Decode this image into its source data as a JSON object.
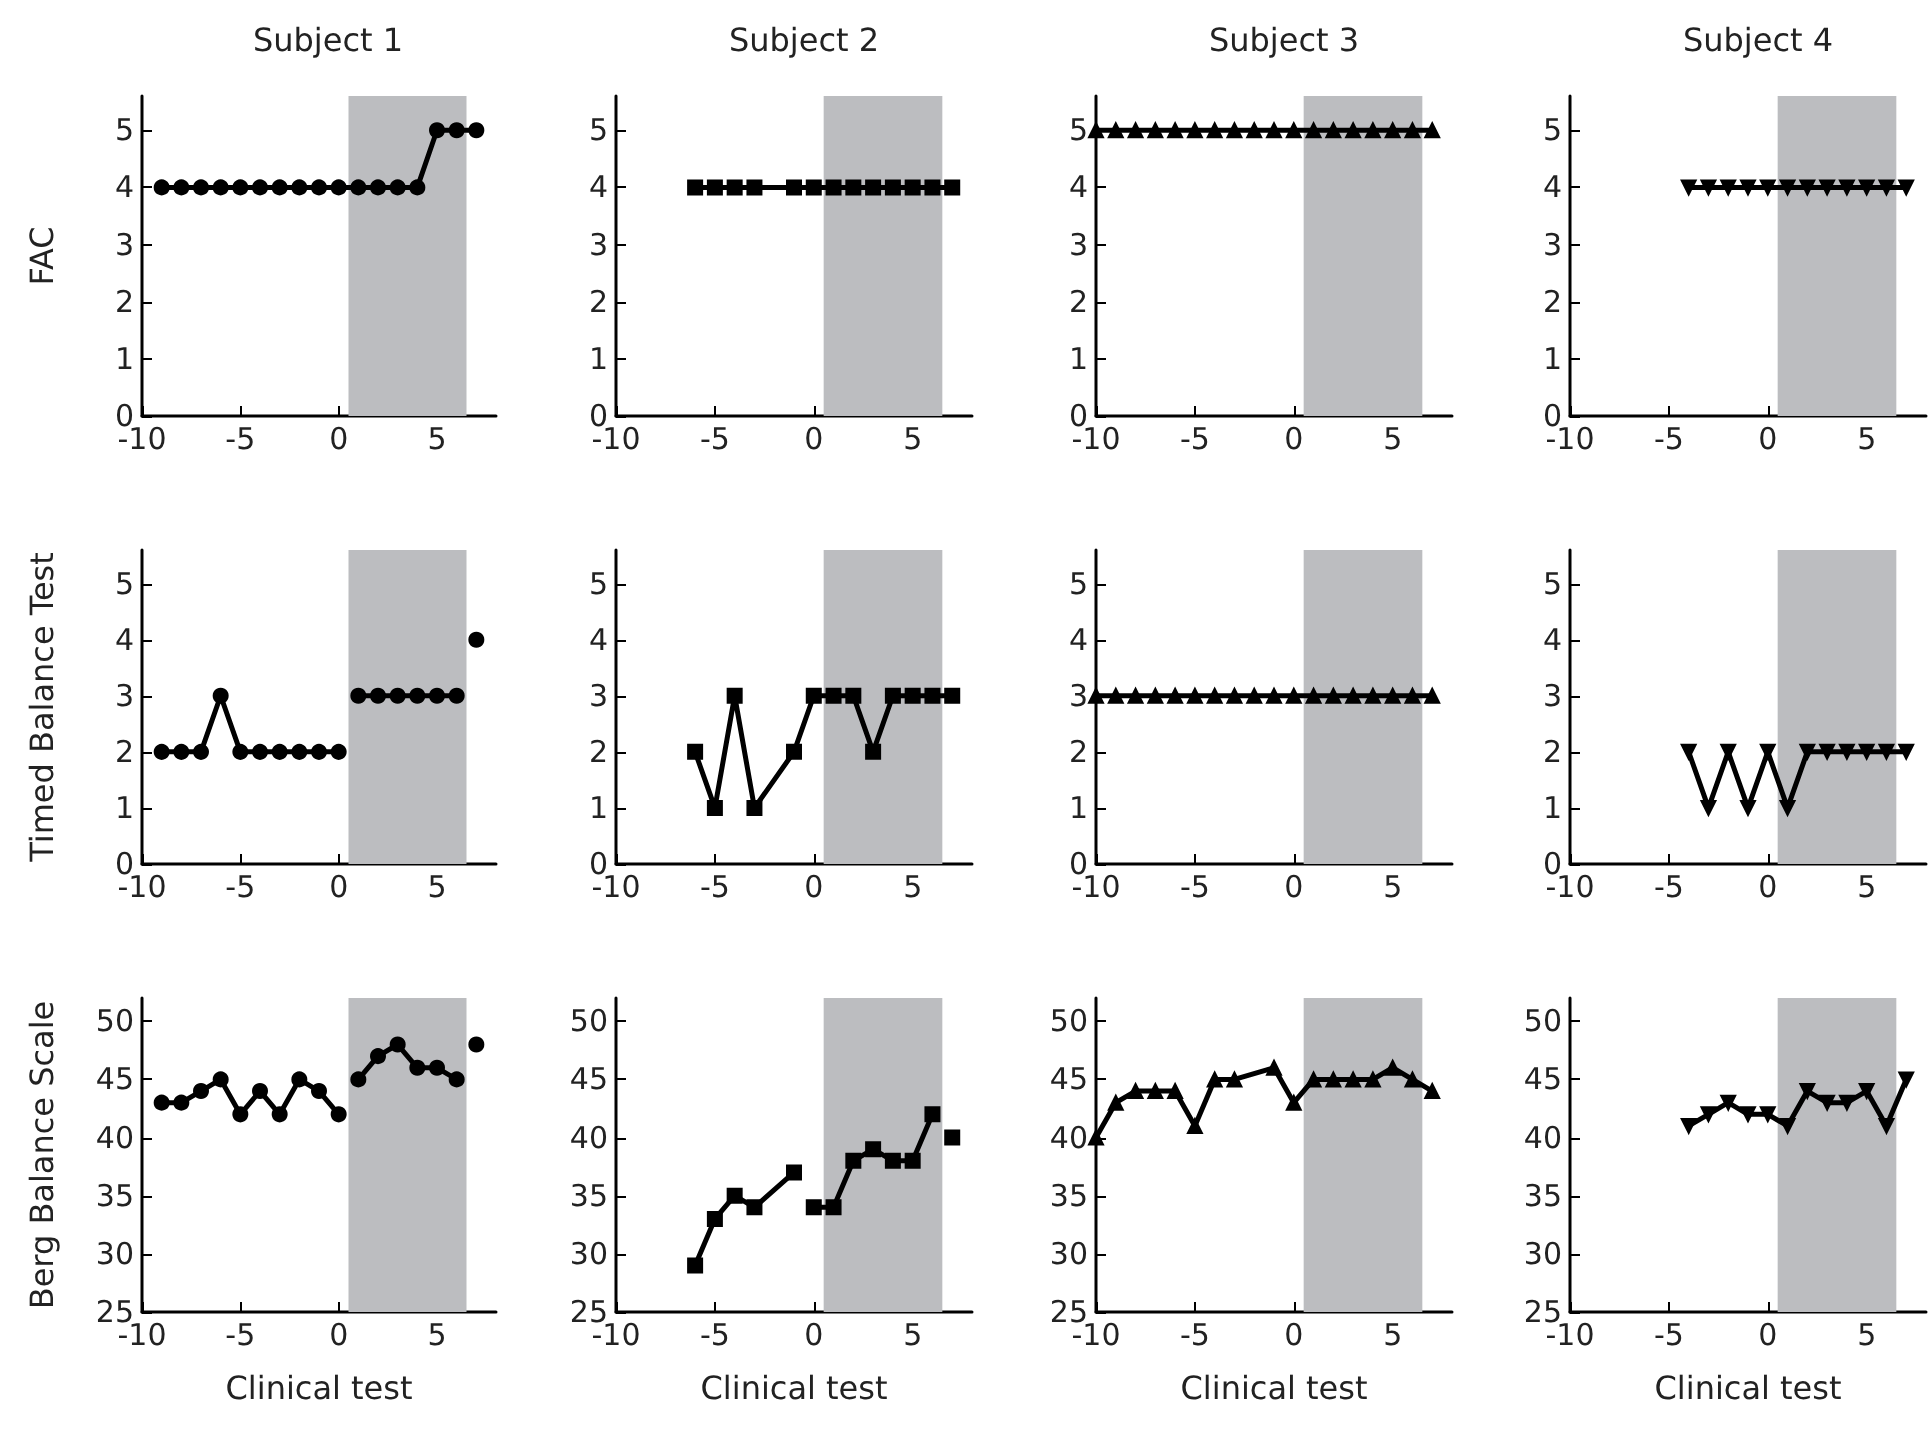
{
  "chart_data": [
    {
      "type": "line",
      "title": "Subject 1",
      "ylabel": "FAC",
      "xlim": [
        -10,
        8
      ],
      "xticks": [
        -10,
        -5,
        0,
        5
      ],
      "ylim": [
        0,
        5.6
      ],
      "yticks": [
        0,
        1,
        2,
        3,
        4,
        5
      ],
      "marker": "circle",
      "bands": [
        {
          "axis": "x",
          "from": 0.5,
          "to": 6.5,
          "color": "#bcbdc0"
        }
      ],
      "series": [
        {
          "color": "#000000",
          "x": [
            -9,
            -8,
            -7,
            -6,
            -5,
            -4,
            -3,
            -2,
            -1,
            0,
            1,
            2,
            3,
            4,
            5,
            6,
            7
          ],
          "values": [
            4,
            4,
            4,
            4,
            4,
            4,
            4,
            4,
            4,
            4,
            4,
            4,
            4,
            4,
            5,
            5,
            5
          ]
        }
      ]
    },
    {
      "type": "line",
      "title": "Subject 2",
      "xlim": [
        -10,
        8
      ],
      "xticks": [
        -10,
        -5,
        0,
        5
      ],
      "ylim": [
        0,
        5.6
      ],
      "yticks": [
        0,
        1,
        2,
        3,
        4,
        5
      ],
      "marker": "square",
      "bands": [
        {
          "axis": "x",
          "from": 0.5,
          "to": 6.5,
          "color": "#bcbdc0"
        }
      ],
      "series": [
        {
          "color": "#000000",
          "x": [
            -6,
            -5,
            -4,
            -3,
            -1,
            0,
            1,
            2,
            3,
            4,
            5,
            6,
            7
          ],
          "values": [
            4,
            4,
            4,
            4,
            4,
            4,
            4,
            4,
            4,
            4,
            4,
            4,
            4
          ]
        }
      ]
    },
    {
      "type": "line",
      "title": "Subject 3",
      "xlim": [
        -10,
        8
      ],
      "xticks": [
        -10,
        -5,
        0,
        5
      ],
      "ylim": [
        0,
        5.6
      ],
      "yticks": [
        0,
        1,
        2,
        3,
        4,
        5
      ],
      "marker": "triangle",
      "bands": [
        {
          "axis": "x",
          "from": 0.5,
          "to": 6.5,
          "color": "#bcbdc0"
        }
      ],
      "series": [
        {
          "color": "#000000",
          "x": [
            -10,
            -9,
            -8,
            -7,
            -6,
            -5,
            -4,
            -3,
            -2,
            -1,
            0,
            1,
            2,
            3,
            4,
            5,
            6,
            7
          ],
          "values": [
            5,
            5,
            5,
            5,
            5,
            5,
            5,
            5,
            5,
            5,
            5,
            5,
            5,
            5,
            5,
            5,
            5,
            5
          ]
        }
      ]
    },
    {
      "type": "line",
      "title": "Subject 4",
      "xlim": [
        -10,
        8
      ],
      "xticks": [
        -10,
        -5,
        0,
        5
      ],
      "ylim": [
        0,
        5.6
      ],
      "yticks": [
        0,
        1,
        2,
        3,
        4,
        5
      ],
      "marker": "triangle-down",
      "bands": [
        {
          "axis": "x",
          "from": 0.5,
          "to": 6.5,
          "color": "#bcbdc0"
        }
      ],
      "series": [
        {
          "color": "#000000",
          "x": [
            -4,
            -3,
            -2,
            -1,
            0,
            1,
            2,
            3,
            4,
            5,
            6,
            7
          ],
          "values": [
            4,
            4,
            4,
            4,
            4,
            4,
            4,
            4,
            4,
            4,
            4,
            4
          ]
        }
      ]
    },
    {
      "type": "line",
      "ylabel": "Timed Balance Test",
      "xlim": [
        -10,
        8
      ],
      "xticks": [
        -10,
        -5,
        0,
        5
      ],
      "ylim": [
        0,
        5.6
      ],
      "yticks": [
        0,
        1,
        2,
        3,
        4,
        5
      ],
      "marker": "circle",
      "bands": [
        {
          "axis": "x",
          "from": 0.5,
          "to": 6.5,
          "color": "#bcbdc0"
        }
      ],
      "series": [
        {
          "color": "#000000",
          "x": [
            -9,
            -8,
            -7,
            -6,
            -5,
            -4,
            -3,
            -2,
            -1,
            0
          ],
          "values": [
            2,
            2,
            2,
            3,
            2,
            2,
            2,
            2,
            2,
            2
          ]
        },
        {
          "color": "#000000",
          "x": [
            1,
            2,
            3,
            4,
            5,
            6
          ],
          "values": [
            3,
            3,
            3,
            3,
            3,
            3
          ]
        },
        {
          "color": "#000000",
          "x": [
            7
          ],
          "values": [
            4
          ]
        }
      ]
    },
    {
      "type": "line",
      "xlim": [
        -10,
        8
      ],
      "xticks": [
        -10,
        -5,
        0,
        5
      ],
      "ylim": [
        0,
        5.6
      ],
      "yticks": [
        0,
        1,
        2,
        3,
        4,
        5
      ],
      "marker": "square",
      "bands": [
        {
          "axis": "x",
          "from": 0.5,
          "to": 6.5,
          "color": "#bcbdc0"
        }
      ],
      "series": [
        {
          "color": "#000000",
          "x": [
            -6,
            -5,
            -4,
            -3,
            -1,
            0,
            1,
            2,
            3,
            4,
            5,
            6,
            7
          ],
          "values": [
            2,
            1,
            3,
            1,
            2,
            3,
            3,
            3,
            2,
            3,
            3,
            3,
            3
          ]
        }
      ]
    },
    {
      "type": "line",
      "xlim": [
        -10,
        8
      ],
      "xticks": [
        -10,
        -5,
        0,
        5
      ],
      "ylim": [
        0,
        5.6
      ],
      "yticks": [
        0,
        1,
        2,
        3,
        4,
        5
      ],
      "marker": "triangle",
      "bands": [
        {
          "axis": "x",
          "from": 0.5,
          "to": 6.5,
          "color": "#bcbdc0"
        }
      ],
      "series": [
        {
          "color": "#000000",
          "x": [
            -10,
            -9,
            -8,
            -7,
            -6,
            -5,
            -4,
            -3,
            -2,
            -1,
            0,
            1,
            2,
            3,
            4,
            5,
            6,
            7
          ],
          "values": [
            3,
            3,
            3,
            3,
            3,
            3,
            3,
            3,
            3,
            3,
            3,
            3,
            3,
            3,
            3,
            3,
            3,
            3
          ]
        }
      ]
    },
    {
      "type": "line",
      "xlim": [
        -10,
        8
      ],
      "xticks": [
        -10,
        -5,
        0,
        5
      ],
      "ylim": [
        0,
        5.6
      ],
      "yticks": [
        0,
        1,
        2,
        3,
        4,
        5
      ],
      "marker": "triangle-down",
      "bands": [
        {
          "axis": "x",
          "from": 0.5,
          "to": 6.5,
          "color": "#bcbdc0"
        }
      ],
      "series": [
        {
          "color": "#000000",
          "x": [
            -4,
            -3,
            -2,
            -1,
            0,
            1,
            2,
            3,
            4,
            5,
            6,
            7
          ],
          "values": [
            2,
            1,
            2,
            1,
            2,
            1,
            2,
            2,
            2,
            2,
            2,
            2
          ]
        }
      ]
    },
    {
      "type": "line",
      "ylabel": "Berg Balance Scale",
      "xlabel": "Clinical test",
      "xlim": [
        -10,
        8
      ],
      "xticks": [
        -10,
        -5,
        0,
        5
      ],
      "ylim": [
        25,
        52
      ],
      "yticks": [
        25,
        30,
        35,
        40,
        45,
        50
      ],
      "marker": "circle",
      "bands": [
        {
          "axis": "x",
          "from": 0.5,
          "to": 6.5,
          "color": "#bcbdc0"
        }
      ],
      "series": [
        {
          "color": "#000000",
          "x": [
            -9,
            -8,
            -7,
            -6,
            -5,
            -4,
            -3,
            -2,
            -1,
            0
          ],
          "values": [
            43,
            43,
            44,
            45,
            42,
            44,
            42,
            45,
            44,
            42
          ]
        },
        {
          "color": "#000000",
          "x": [
            1,
            2,
            3,
            4,
            5,
            6
          ],
          "values": [
            45,
            47,
            48,
            46,
            46,
            45
          ]
        },
        {
          "color": "#000000",
          "x": [
            7
          ],
          "values": [
            48
          ]
        }
      ]
    },
    {
      "type": "line",
      "xlabel": "Clinical test",
      "xlim": [
        -10,
        8
      ],
      "xticks": [
        -10,
        -5,
        0,
        5
      ],
      "ylim": [
        25,
        52
      ],
      "yticks": [
        25,
        30,
        35,
        40,
        45,
        50
      ],
      "marker": "square",
      "bands": [
        {
          "axis": "x",
          "from": 0.5,
          "to": 6.5,
          "color": "#bcbdc0"
        }
      ],
      "series": [
        {
          "color": "#000000",
          "x": [
            -6,
            -5,
            -4,
            -3,
            -1
          ],
          "values": [
            29,
            33,
            35,
            34,
            37
          ]
        },
        {
          "color": "#000000",
          "x": [
            0,
            1,
            2,
            3,
            4,
            5,
            6
          ],
          "values": [
            34,
            34,
            38,
            39,
            38,
            38,
            42
          ]
        },
        {
          "color": "#000000",
          "x": [
            7
          ],
          "values": [
            40
          ]
        }
      ]
    },
    {
      "type": "line",
      "xlabel": "Clinical test",
      "xlim": [
        -10,
        8
      ],
      "xticks": [
        -10,
        -5,
        0,
        5
      ],
      "ylim": [
        25,
        52
      ],
      "yticks": [
        25,
        30,
        35,
        40,
        45,
        50
      ],
      "marker": "triangle",
      "bands": [
        {
          "axis": "x",
          "from": 0.5,
          "to": 6.5,
          "color": "#bcbdc0"
        }
      ],
      "series": [
        {
          "color": "#000000",
          "x": [
            -10,
            -9,
            -8,
            -7,
            -6,
            -5,
            -4,
            -3,
            -1,
            0,
            1,
            2,
            3,
            4,
            5,
            6,
            7
          ],
          "values": [
            40,
            43,
            44,
            44,
            44,
            41,
            45,
            45,
            46,
            43,
            45,
            45,
            45,
            45,
            46,
            45,
            44
          ]
        }
      ]
    },
    {
      "type": "line",
      "xlabel": "Clinical test",
      "xlim": [
        -10,
        8
      ],
      "xticks": [
        -10,
        -5,
        0,
        5
      ],
      "ylim": [
        25,
        52
      ],
      "yticks": [
        25,
        30,
        35,
        40,
        45,
        50
      ],
      "marker": "triangle-down",
      "bands": [
        {
          "axis": "x",
          "from": 0.5,
          "to": 6.5,
          "color": "#bcbdc0"
        }
      ],
      "series": [
        {
          "color": "#000000",
          "x": [
            -4,
            -3,
            -2,
            -1,
            0,
            1,
            2,
            3,
            4,
            5,
            6,
            7
          ],
          "values": [
            41,
            42,
            43,
            42,
            42,
            41,
            44,
            43,
            43,
            44,
            41,
            45
          ]
        }
      ]
    }
  ]
}
